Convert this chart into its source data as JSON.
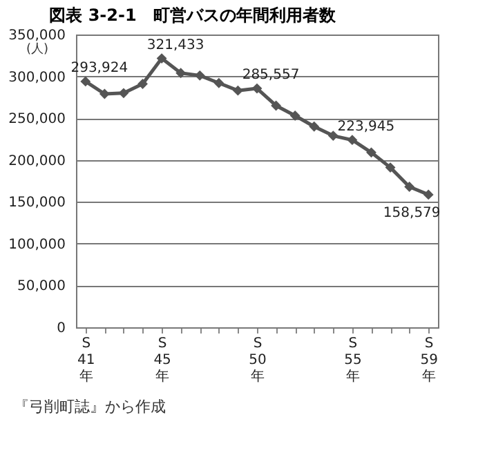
{
  "chart_data": {
    "type": "line",
    "title": "図表 3-2-1　町営バスの年間利用者数",
    "ylabel": "(人)",
    "categories": [
      "S\n41\n年",
      null,
      null,
      null,
      "S\n45\n年",
      null,
      null,
      null,
      null,
      "S\n50\n年",
      null,
      null,
      null,
      null,
      "S\n55\n年",
      null,
      null,
      null,
      "S\n59\n年"
    ],
    "series": [
      {
        "color": "#555555",
        "values": [
          293924,
          279000,
          280000,
          291000,
          321433,
          304000,
          301000,
          292000,
          283000,
          285557,
          265000,
          253000,
          240000,
          229000,
          223945,
          209000,
          191000,
          168000,
          158579
        ],
        "value_labels": [
          "293,924",
          null,
          null,
          null,
          "321,433",
          null,
          null,
          null,
          null,
          "285,557",
          null,
          null,
          null,
          null,
          "223,945",
          null,
          null,
          null,
          "158,579"
        ]
      }
    ],
    "ylim": [
      0,
      350000
    ],
    "yticks": [
      0,
      {
        "value": 50000,
        "label": "50,000"
      },
      {
        "value": 100000,
        "label": "100,000"
      },
      {
        "value": 150000,
        "label": "150,000"
      },
      {
        "value": 200000,
        "label": "200,000"
      },
      {
        "value": 250000,
        "label": "250,000"
      },
      {
        "value": 300000,
        "label": "300,000"
      },
      {
        "value": 350000,
        "label": "350,000"
      }
    ],
    "grid": "y",
    "marker": "diamond",
    "line_style": "solid",
    "annotations": [
      "『弓削町誌』から作成"
    ]
  }
}
